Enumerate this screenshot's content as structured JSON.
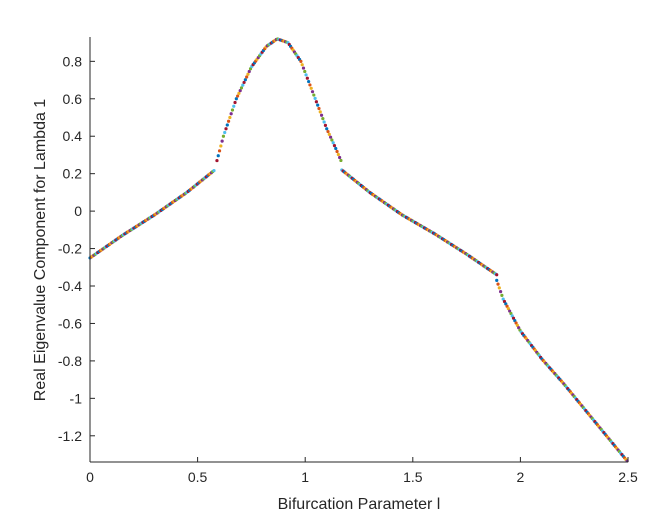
{
  "chart_data": {
    "type": "scatter",
    "title": "",
    "xlabel": "Bifurcation Parameter l",
    "ylabel": "Real Eigenvalue Component for Lambda 1",
    "xlim": [
      0,
      2.5
    ],
    "ylim": [
      -1.34,
      0.93
    ],
    "grid": false,
    "legend": "none",
    "x_ticks": [
      {
        "value": 0,
        "label": "0"
      },
      {
        "value": 0.5,
        "label": "0.5"
      },
      {
        "value": 1,
        "label": "1"
      },
      {
        "value": 1.5,
        "label": "1.5"
      },
      {
        "value": 2,
        "label": "2"
      },
      {
        "value": 2.5,
        "label": "2.5"
      }
    ],
    "y_ticks": [
      {
        "value": 0.8,
        "label": "0.8"
      },
      {
        "value": 0.6,
        "label": "0.6"
      },
      {
        "value": 0.4,
        "label": "0.4"
      },
      {
        "value": 0.2,
        "label": "0.2"
      },
      {
        "value": 0,
        "label": "0"
      },
      {
        "value": -0.2,
        "label": "-0.2"
      },
      {
        "value": -0.4,
        "label": "-0.4"
      },
      {
        "value": -0.6,
        "label": "-0.6"
      },
      {
        "value": -0.8,
        "label": "-0.8"
      },
      {
        "value": -1,
        "label": "-1"
      },
      {
        "value": -1.2,
        "label": "-1.2"
      }
    ],
    "marker_colors": [
      "#0072BD",
      "#D95319",
      "#EDB120",
      "#7E2F8E",
      "#77AC30",
      "#4DBEEE",
      "#A2142F"
    ],
    "x_step": 0.006,
    "curve_segments": [
      {
        "name": "branch-1",
        "x": [
          0,
          0.15,
          0.3,
          0.45,
          0.58
        ],
        "y": [
          -0.25,
          -0.13,
          -0.02,
          0.1,
          0.22
        ]
      },
      {
        "name": "branch-2",
        "x": [
          0.59,
          0.62,
          0.68,
          0.75,
          0.82,
          0.87,
          0.92,
          0.98,
          1.04,
          1.1,
          1.14,
          1.17
        ],
        "y": [
          0.27,
          0.4,
          0.6,
          0.77,
          0.88,
          0.92,
          0.9,
          0.8,
          0.62,
          0.44,
          0.34,
          0.26
        ]
      },
      {
        "name": "branch-3",
        "x": [
          1.17,
          1.3,
          1.45,
          1.6,
          1.75,
          1.89
        ],
        "y": [
          0.22,
          0.1,
          -0.02,
          -0.12,
          -0.23,
          -0.34
        ]
      },
      {
        "name": "branch-4",
        "x": [
          1.89,
          1.92,
          2.0,
          2.1,
          2.2,
          2.3,
          2.4,
          2.5
        ],
        "y": [
          -0.37,
          -0.47,
          -0.64,
          -0.79,
          -0.92,
          -1.06,
          -1.2,
          -1.34
        ]
      }
    ]
  }
}
